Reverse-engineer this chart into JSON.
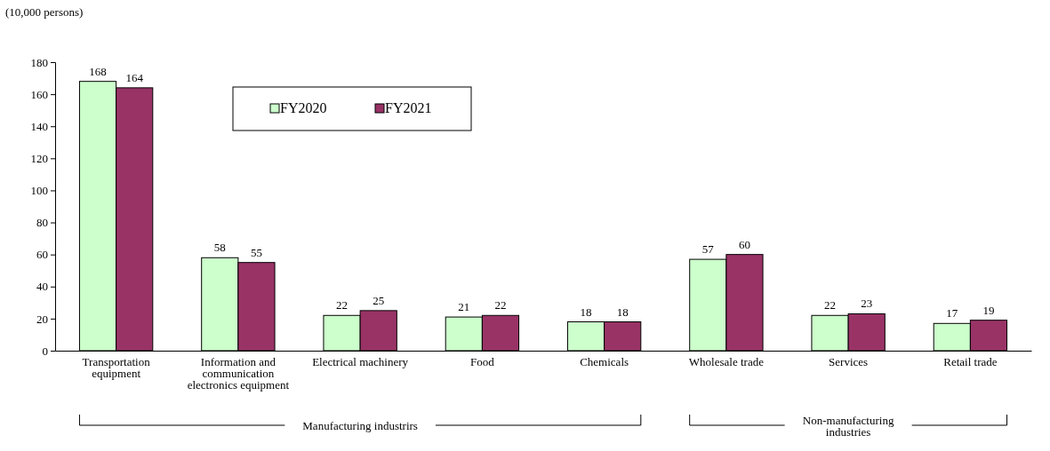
{
  "chart_data": {
    "type": "bar",
    "ylabel": "(10,000 persons)",
    "categories": [
      "Transportation equipment",
      "Information and communication electronics equipment",
      "Electrical machinery",
      "Food",
      "Chemicals",
      "Wholesale trade",
      "Services",
      "Retail trade"
    ],
    "series": [
      {
        "name": "FY2020",
        "color": "#ccffcc",
        "values": [
          168,
          58,
          22,
          21,
          18,
          57,
          22,
          17
        ]
      },
      {
        "name": "FY2021",
        "color": "#993366",
        "values": [
          164,
          55,
          25,
          22,
          18,
          60,
          23,
          19
        ]
      }
    ],
    "ylim": [
      0,
      180
    ],
    "yticks": [
      0,
      20,
      40,
      60,
      80,
      100,
      120,
      140,
      160,
      180
    ],
    "grid": false,
    "legend": "top left",
    "data_labels": true,
    "annotations": [
      "Manufacturing industrirs",
      "Non-manufacturing industries"
    ]
  }
}
